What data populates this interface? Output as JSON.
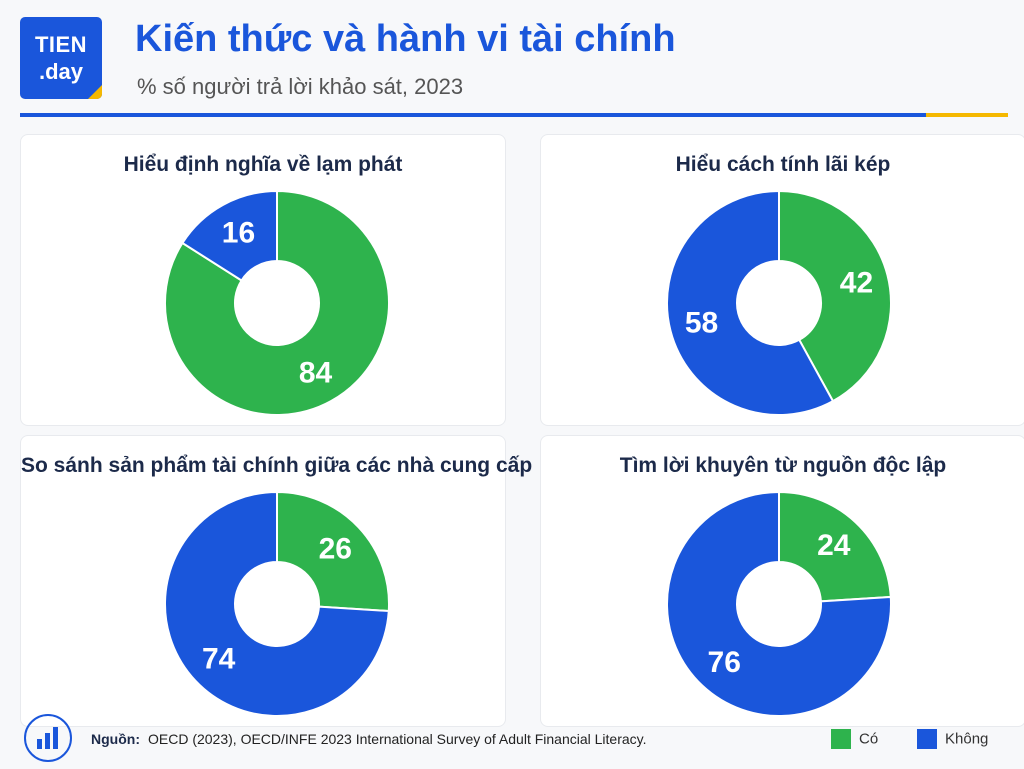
{
  "header": {
    "logo_line1": "TIEN",
    "logo_line2": ".day",
    "title": "Kiến thức và hành vi tài chính",
    "subtitle": "% số người trả lời khảo sát, 2023"
  },
  "colors": {
    "yes": "#2eb34d",
    "no": "#1a56db",
    "accent": "#1a56db",
    "highlight": "#f5b800"
  },
  "chart_data": [
    {
      "type": "pie",
      "title": "Hiểu định nghĩa về lạm phát",
      "labels": [
        "Có",
        "Không"
      ],
      "values": [
        84,
        16
      ]
    },
    {
      "type": "pie",
      "title": "Hiểu cách tính lãi kép",
      "labels": [
        "Có",
        "Không"
      ],
      "values": [
        42,
        58
      ]
    },
    {
      "type": "pie",
      "title": "So sánh sản phẩm tài chính giữa các nhà cung cấp",
      "labels": [
        "Có",
        "Không"
      ],
      "values": [
        26,
        74
      ]
    },
    {
      "type": "pie",
      "title": "Tìm lời khuyên từ nguồn độc lập",
      "labels": [
        "Có",
        "Không"
      ],
      "values": [
        24,
        76
      ]
    }
  ],
  "legend": {
    "yes": "Có",
    "no": "Không",
    "placement": "bottom-right"
  },
  "footer": {
    "source_label": "Nguồn:",
    "source_text": "OECD (2023), OECD/INFE 2023 International Survey of Adult Financial Literacy.",
    "icon": "bar-chart-icon"
  }
}
